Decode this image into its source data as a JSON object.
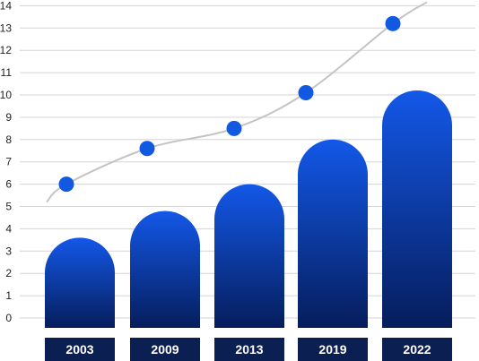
{
  "chart_data": {
    "type": "bar",
    "categories": [
      "2003",
      "2009",
      "2013",
      "2019",
      "2022"
    ],
    "series": [
      {
        "type": "bar",
        "values": [
          3.6,
          4.8,
          6.0,
          8.0,
          10.2
        ]
      },
      {
        "type": "line",
        "values": [
          6.0,
          7.6,
          8.5,
          10.1,
          13.2
        ]
      }
    ],
    "y_ticks": [
      0,
      1,
      2,
      3,
      4,
      5,
      6,
      7,
      8,
      9,
      10,
      11,
      12,
      13,
      14
    ],
    "ylim": [
      0,
      14
    ],
    "grid": true,
    "colors": {
      "bar_top": "#1358e8",
      "bar_bottom": "#061d5c",
      "category_box": "#0b1f52",
      "trend_line": "#c4c4c4",
      "point": "#1259e2",
      "grid": "#d5d5d5"
    }
  }
}
